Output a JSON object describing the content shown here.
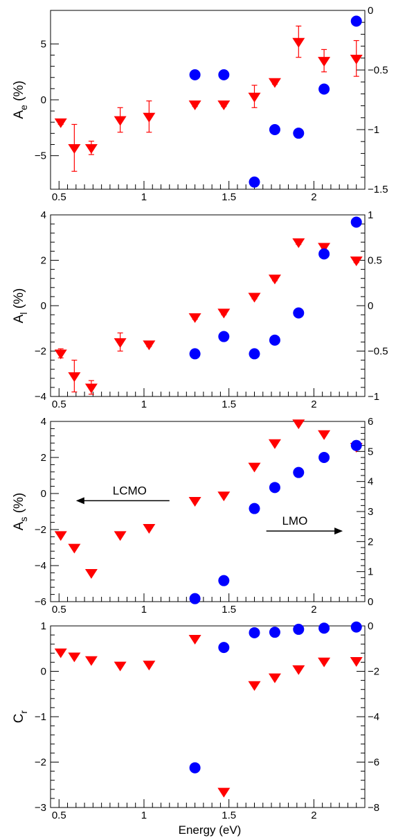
{
  "figure": {
    "xlabel": "Energy (eV)"
  },
  "colors": {
    "lcmo": "#ff0000",
    "lmo": "#0000ff"
  },
  "chart_data": [
    {
      "type": "scatter",
      "xlim": [
        0.45,
        2.3
      ],
      "x_ticks": [
        "0.5",
        "1",
        "1.5",
        "2"
      ],
      "ylabel": "A_e (%)",
      "ylabel_main": "A",
      "ylabel_sub": "e",
      "ylabel_rest": " (%)",
      "ylim_left": [
        -8,
        8
      ],
      "left_ticks": [
        -5,
        0,
        5
      ],
      "left_tick_labels": [
        "−5",
        "0",
        "5"
      ],
      "ylim_right": [
        -1.5,
        0
      ],
      "right_ticks": [
        -1.5,
        -1,
        -0.5,
        0
      ],
      "right_tick_labels": [
        "−1.5",
        "−1",
        "−0.5",
        "0"
      ],
      "series": [
        {
          "name": "LCMO",
          "axis": "left",
          "marker": "triangle-down",
          "color": "#ff0000",
          "x": [
            0.51,
            0.59,
            0.69,
            0.86,
            1.03,
            1.3,
            1.47,
            1.65,
            1.77,
            1.91,
            2.06,
            2.25
          ],
          "y": [
            -2.0,
            -4.3,
            -4.3,
            -1.8,
            -1.5,
            -0.4,
            -0.4,
            0.3,
            1.6,
            5.2,
            3.5,
            3.7
          ],
          "err": [
            0.2,
            2.1,
            0.6,
            1.1,
            1.4,
            0.2,
            0.2,
            1.0,
            0.2,
            1.4,
            1.0,
            1.6
          ]
        },
        {
          "name": "LMO",
          "axis": "right",
          "marker": "circle",
          "color": "#0000ff",
          "x": [
            1.3,
            1.47,
            1.65,
            1.77,
            1.91,
            2.06,
            2.25
          ],
          "y": [
            -0.54,
            -0.54,
            -1.44,
            -1.0,
            -1.03,
            -0.66,
            -0.09
          ]
        }
      ]
    },
    {
      "type": "scatter",
      "xlim": [
        0.45,
        2.3
      ],
      "x_ticks": [
        "0.5",
        "1",
        "1.5",
        "2"
      ],
      "ylabel": "A_l (%)",
      "ylabel_main": "A",
      "ylabel_sub": "l",
      "ylabel_rest": " (%)",
      "ylim_left": [
        -4,
        4
      ],
      "left_ticks": [
        -4,
        -2,
        0,
        2,
        4
      ],
      "left_tick_labels": [
        "−4",
        "−2",
        "0",
        "2",
        "4"
      ],
      "ylim_right": [
        -1,
        1
      ],
      "right_ticks": [
        -1,
        -0.5,
        0,
        0.5,
        1
      ],
      "right_tick_labels": [
        "−1",
        "−0.5",
        "0",
        "0.5",
        "1"
      ],
      "series": [
        {
          "name": "LCMO",
          "axis": "left",
          "marker": "triangle-down",
          "color": "#ff0000",
          "x": [
            0.51,
            0.59,
            0.69,
            0.86,
            1.03,
            1.3,
            1.47,
            1.65,
            1.77,
            1.91,
            2.06,
            2.25
          ],
          "y": [
            -2.1,
            -3.1,
            -3.6,
            -1.6,
            -1.7,
            -0.5,
            -0.3,
            0.4,
            1.2,
            2.8,
            2.6,
            2.0
          ],
          "err": [
            0.2,
            0.7,
            0.3,
            0.4,
            0.1,
            0.1,
            0.1,
            0.1,
            0.1,
            0.1,
            0.1,
            0.1
          ]
        },
        {
          "name": "LMO",
          "axis": "right",
          "marker": "circle",
          "color": "#0000ff",
          "x": [
            1.3,
            1.47,
            1.65,
            1.77,
            1.91,
            2.06,
            2.25
          ],
          "y": [
            -0.53,
            -0.34,
            -0.53,
            -0.38,
            -0.08,
            0.57,
            0.92
          ]
        }
      ]
    },
    {
      "type": "scatter",
      "xlim": [
        0.45,
        2.3
      ],
      "x_ticks": [
        "0.5",
        "1",
        "1.5",
        "2"
      ],
      "ylabel": "A_s (%)",
      "ylabel_main": "A",
      "ylabel_sub": "s",
      "ylabel_rest": " (%)",
      "ylim_left": [
        -6,
        4
      ],
      "left_ticks": [
        -6,
        -4,
        -2,
        0,
        2,
        4
      ],
      "left_tick_labels": [
        "−6",
        "−4",
        "−2",
        "0",
        "2",
        "4"
      ],
      "ylim_right": [
        0,
        6
      ],
      "right_ticks": [
        0,
        1,
        2,
        3,
        4,
        5,
        6
      ],
      "right_tick_labels": [
        "0",
        "1",
        "2",
        "3",
        "4",
        "5",
        "6"
      ],
      "annotations": [
        {
          "text": "LCMO",
          "direction": "left"
        },
        {
          "text": "LMO",
          "direction": "right"
        }
      ],
      "series": [
        {
          "name": "LCMO",
          "axis": "left",
          "marker": "triangle-down",
          "color": "#ff0000",
          "x": [
            0.51,
            0.59,
            0.69,
            0.86,
            1.03,
            1.3,
            1.47,
            1.65,
            1.77,
            1.91,
            2.06,
            2.25
          ],
          "y": [
            -2.3,
            -3.0,
            -4.4,
            -2.3,
            -1.9,
            -0.4,
            -0.1,
            1.5,
            2.8,
            3.9,
            3.3,
            2.6
          ],
          "err": [
            0,
            0,
            0,
            0,
            0,
            0,
            0,
            0,
            0,
            0,
            0,
            0
          ]
        },
        {
          "name": "LMO",
          "axis": "right",
          "marker": "circle",
          "color": "#0000ff",
          "x": [
            1.3,
            1.47,
            1.65,
            1.77,
            1.91,
            2.06,
            2.25
          ],
          "y": [
            0.1,
            0.7,
            3.1,
            3.8,
            4.3,
            4.8,
            5.2
          ]
        }
      ]
    },
    {
      "type": "scatter",
      "xlim": [
        0.45,
        2.3
      ],
      "x_ticks": [
        "0.5",
        "1",
        "1.5",
        "2"
      ],
      "ylabel": "C_r",
      "ylabel_main": "C",
      "ylabel_sub": "r",
      "ylabel_rest": "",
      "ylim_left": [
        -3,
        1
      ],
      "left_ticks": [
        -3,
        -2,
        -1,
        0,
        1
      ],
      "left_tick_labels": [
        "−3",
        "−2",
        "−1",
        "0",
        "1"
      ],
      "ylim_right": [
        -8,
        0
      ],
      "right_ticks": [
        -8,
        -6,
        -4,
        -2,
        0
      ],
      "right_tick_labels": [
        "−8",
        "−6",
        "−4",
        "−2",
        "0"
      ],
      "series": [
        {
          "name": "LCMO",
          "axis": "left",
          "marker": "triangle-down",
          "color": "#ff0000",
          "x": [
            0.51,
            0.59,
            0.69,
            0.86,
            1.03,
            1.3,
            1.47,
            1.65,
            1.77,
            1.91,
            2.06,
            2.25
          ],
          "y": [
            0.42,
            0.33,
            0.25,
            0.13,
            0.15,
            0.72,
            -2.65,
            -0.3,
            -0.13,
            0.05,
            0.22,
            0.23
          ],
          "err": [
            0,
            0,
            0,
            0,
            0,
            0,
            0,
            0,
            0,
            0,
            0,
            0
          ]
        },
        {
          "name": "LMO",
          "axis": "right",
          "marker": "circle",
          "color": "#0000ff",
          "x": [
            1.3,
            1.47,
            1.65,
            1.77,
            1.91,
            2.06,
            2.25
          ],
          "y": [
            -6.25,
            -0.95,
            -0.3,
            -0.28,
            -0.15,
            -0.1,
            -0.05
          ]
        }
      ]
    }
  ]
}
